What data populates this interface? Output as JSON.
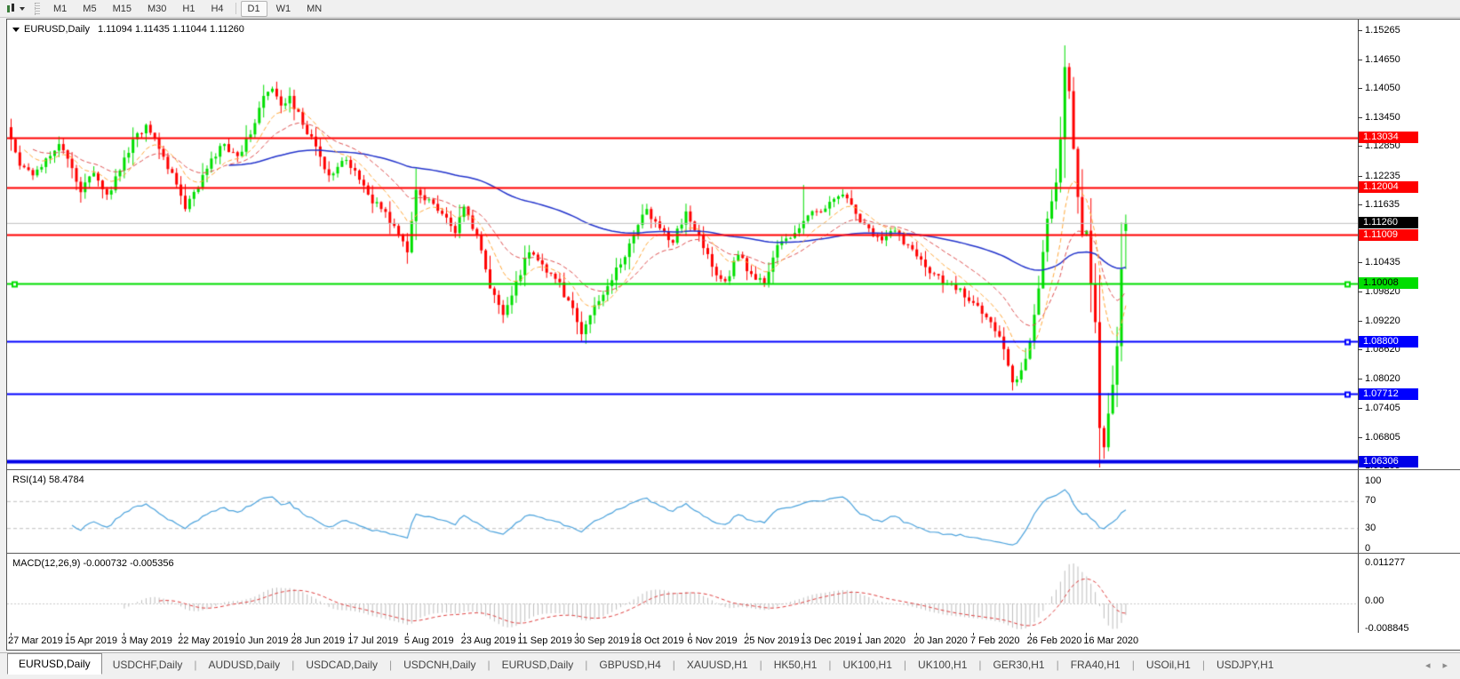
{
  "toolbar": {
    "timeframes": [
      "M1",
      "M5",
      "M15",
      "M30",
      "H1",
      "H4",
      "D1",
      "W1",
      "MN"
    ],
    "active_timeframe": "D1"
  },
  "icons": {
    "chart_dropdown": "candlestick-chart-with-caret",
    "tab_scroll_left": "◂",
    "tab_scroll_right": "▸"
  },
  "chart": {
    "title_symbol": "EURUSD,Daily",
    "title_ohlc": "1.11094 1.11435 1.11044 1.11260",
    "rsi_label": "RSI(14) 58.4784",
    "macd_label": "MACD(12,26,9) -0.000732 -0.005356"
  },
  "chart_data": {
    "type": "candlestick",
    "symbol": "EURUSD",
    "timeframe": "Daily",
    "current_ohlc": {
      "open": 1.11094,
      "high": 1.11435,
      "low": 1.11044,
      "close": 1.1126
    },
    "bars_count": 257,
    "ylim": [
      1.0618,
      1.1545
    ],
    "price_path_anchors": [
      [
        0,
        1.13
      ],
      [
        2,
        1.1245
      ],
      [
        5,
        1.1225
      ],
      [
        8,
        1.126
      ],
      [
        11,
        1.129
      ],
      [
        14,
        1.124
      ],
      [
        16,
        1.119
      ],
      [
        19,
        1.123
      ],
      [
        22,
        1.1185
      ],
      [
        25,
        1.1235
      ],
      [
        28,
        1.13
      ],
      [
        31,
        1.133
      ],
      [
        34,
        1.128
      ],
      [
        37,
        1.123
      ],
      [
        40,
        1.1155
      ],
      [
        43,
        1.12
      ],
      [
        46,
        1.126
      ],
      [
        49,
        1.129
      ],
      [
        52,
        1.1265
      ],
      [
        55,
        1.131
      ],
      [
        58,
        1.139
      ],
      [
        60,
        1.1405
      ],
      [
        62,
        1.137
      ],
      [
        64,
        1.139
      ],
      [
        67,
        1.133
      ],
      [
        70,
        1.1285
      ],
      [
        73,
        1.1225
      ],
      [
        76,
        1.1255
      ],
      [
        79,
        1.1235
      ],
      [
        82,
        1.1185
      ],
      [
        85,
        1.1155
      ],
      [
        88,
        1.112
      ],
      [
        91,
        1.1065
      ],
      [
        93,
        1.1195
      ],
      [
        96,
        1.1175
      ],
      [
        99,
        1.1145
      ],
      [
        102,
        1.1105
      ],
      [
        104,
        1.116
      ],
      [
        107,
        1.11
      ],
      [
        110,
        1.099
      ],
      [
        113,
        1.0935
      ],
      [
        116,
        1.1005
      ],
      [
        119,
        1.1065
      ],
      [
        122,
        1.104
      ],
      [
        125,
        1.101
      ],
      [
        128,
        1.0965
      ],
      [
        131,
        1.0895
      ],
      [
        134,
        1.0955
      ],
      [
        137,
        1.0995
      ],
      [
        140,
        1.104
      ],
      [
        143,
        1.11
      ],
      [
        146,
        1.1155
      ],
      [
        149,
        1.1115
      ],
      [
        152,
        1.1085
      ],
      [
        155,
        1.115
      ],
      [
        158,
        1.11
      ],
      [
        161,
        1.1035
      ],
      [
        164,
        1.1005
      ],
      [
        167,
        1.106
      ],
      [
        170,
        1.102
      ],
      [
        173,
        1.1
      ],
      [
        176,
        1.108
      ],
      [
        179,
        1.1095
      ],
      [
        182,
        1.113
      ],
      [
        185,
        1.115
      ],
      [
        188,
        1.117
      ],
      [
        191,
        1.1185
      ],
      [
        194,
        1.1145
      ],
      [
        197,
        1.1115
      ],
      [
        200,
        1.109
      ],
      [
        203,
        1.111
      ],
      [
        206,
        1.108
      ],
      [
        209,
        1.105
      ],
      [
        212,
        1.102
      ],
      [
        215,
        1.1
      ],
      [
        218,
        1.099
      ],
      [
        221,
        1.096
      ],
      [
        224,
        1.093
      ],
      [
        227,
        1.089
      ],
      [
        230,
        1.0795
      ],
      [
        232,
        1.082
      ],
      [
        234,
        1.088
      ],
      [
        236,
        1.099
      ],
      [
        238,
        1.1135
      ],
      [
        240,
        1.121
      ],
      [
        241,
        1.13
      ],
      [
        242,
        1.145
      ],
      [
        243,
        1.14
      ],
      [
        244,
        1.128
      ],
      [
        245,
        1.118
      ],
      [
        246,
        1.11
      ],
      [
        247,
        1.111
      ],
      [
        248,
        1.1
      ],
      [
        249,
        1.092
      ],
      [
        250,
        1.07
      ],
      [
        251,
        1.066
      ],
      [
        252,
        1.073
      ],
      [
        253,
        1.079
      ],
      [
        254,
        1.087
      ],
      [
        255,
        1.103
      ],
      [
        256,
        1.1126
      ]
    ],
    "wick_overrides": [
      {
        "bar": 131,
        "low": 1.0879
      },
      {
        "bar": 182,
        "high": 1.1205
      },
      {
        "bar": 230,
        "low": 1.0778
      },
      {
        "bar": 242,
        "high": 1.1495
      },
      {
        "bar": 251,
        "low": 1.0636
      },
      {
        "bar": 256,
        "high": 1.11435,
        "low": 1.11044
      }
    ],
    "colors": {
      "up": "#00DF00",
      "down": "#FF0000",
      "ma_fast": "#FFAA3C",
      "ma_medium": "#E05050",
      "ma_slow": "#2233CC",
      "rsi_line": "#4CA3DD",
      "macd_hist": "#BEBEBE",
      "macd_signal": "#E04040",
      "current_price_line": "#C0C0C0"
    },
    "moving_averages": [
      {
        "name": "fast",
        "period": 10,
        "method": "ema",
        "style": "dashed"
      },
      {
        "name": "medium",
        "period": 22,
        "method": "ema",
        "style": "dashed"
      },
      {
        "name": "slow",
        "period": 50,
        "method": "smma",
        "style": "solid"
      }
    ],
    "horizontal_levels": [
      {
        "label": "1.13034",
        "value": 1.13034,
        "color": "#FF0000",
        "chip_bg": "#FF0000",
        "chip_fg": "#FFFFFF",
        "width": 2,
        "handles": []
      },
      {
        "label": "1.12004",
        "value": 1.12004,
        "color": "#FF0000",
        "chip_bg": "#FF0000",
        "chip_fg": "#FFFFFF",
        "width": 2,
        "handles": []
      },
      {
        "label": "1.11009",
        "value": 1.11009,
        "color": "#FF0000",
        "chip_bg": "#FF0000",
        "chip_fg": "#FFFFFF",
        "width": 2,
        "handles": []
      },
      {
        "label": "1.10008",
        "value": 1.10008,
        "color": "#00DE00",
        "chip_bg": "#00DE00",
        "chip_fg": "#000000",
        "width": 2,
        "handles": [
          16,
          1516
        ]
      },
      {
        "label": "1.08800",
        "value": 1.088,
        "color": "#0000FF",
        "chip_bg": "#0000FF",
        "chip_fg": "#FFFFFF",
        "width": 2,
        "handles": [
          1516
        ]
      },
      {
        "label": "1.07712",
        "value": 1.07712,
        "color": "#0000FF",
        "chip_bg": "#0000FF",
        "chip_fg": "#FFFFFF",
        "width": 2,
        "handles": [
          1516
        ]
      },
      {
        "label": "1.06306",
        "value": 1.06306,
        "color": "#0000E8",
        "chip_bg": "#0000E8",
        "chip_fg": "#FFFFFF",
        "width": 4,
        "handles": []
      }
    ],
    "current_price": {
      "label": "1.11260",
      "value": 1.1126,
      "chip_bg": "#000000",
      "chip_fg": "#FFFFFF"
    },
    "price_ticks": [
      "1.15265",
      "1.14650",
      "1.14050",
      "1.13450",
      "1.12850",
      "1.12235",
      "1.11635",
      "1.10435",
      "1.09820",
      "1.09220",
      "1.08620",
      "1.08020",
      "1.07405",
      "1.06805",
      "1.06205"
    ],
    "date_ticks": [
      {
        "label": "27 Mar 2019",
        "bar": 0
      },
      {
        "label": "15 Apr 2019",
        "bar": 13
      },
      {
        "label": "3 May 2019",
        "bar": 26
      },
      {
        "label": "22 May 2019",
        "bar": 39
      },
      {
        "label": "10 Jun 2019",
        "bar": 52
      },
      {
        "label": "28 Jun 2019",
        "bar": 65
      },
      {
        "label": "17 Jul 2019",
        "bar": 78
      },
      {
        "label": "5 Aug 2019",
        "bar": 91
      },
      {
        "label": "23 Aug 2019",
        "bar": 104
      },
      {
        "label": "11 Sep 2019",
        "bar": 117
      },
      {
        "label": "30 Sep 2019",
        "bar": 130
      },
      {
        "label": "18 Oct 2019",
        "bar": 143
      },
      {
        "label": "6 Nov 2019",
        "bar": 156
      },
      {
        "label": "25 Nov 2019",
        "bar": 169
      },
      {
        "label": "13 Dec 2019",
        "bar": 182
      },
      {
        "label": "1 Jan 2020",
        "bar": 195
      },
      {
        "label": "20 Jan 2020",
        "bar": 208
      },
      {
        "label": "7 Feb 2020",
        "bar": 221
      },
      {
        "label": "26 Feb 2020",
        "bar": 234
      },
      {
        "label": "16 Mar 2020",
        "bar": 247
      }
    ],
    "rsi": {
      "period": 14,
      "value": "58.4784",
      "range": [
        0,
        100
      ],
      "levels": [
        70,
        30
      ],
      "axis_labels": [
        {
          "label": "100",
          "v": 100
        },
        {
          "label": "70",
          "v": 70
        },
        {
          "label": "30",
          "v": 30
        },
        {
          "label": "0",
          "v": 0
        }
      ]
    },
    "macd": {
      "params": "12,26,9",
      "main": "-0.000732",
      "signal": "-0.005356",
      "axis_labels": [
        {
          "label": "0.011277",
          "pos": "top"
        },
        {
          "label": "0.00",
          "pos": "zero"
        },
        {
          "label": "-0.008845",
          "pos": "bottom"
        }
      ]
    }
  },
  "tabs": {
    "items": [
      {
        "label": "EURUSD,Daily",
        "active": true
      },
      {
        "label": "USDCHF,Daily",
        "active": false
      },
      {
        "label": "AUDUSD,Daily",
        "active": false
      },
      {
        "label": "USDCAD,Daily",
        "active": false
      },
      {
        "label": "USDCNH,Daily",
        "active": false
      },
      {
        "label": "EURUSD,Daily",
        "active": false
      },
      {
        "label": "GBPUSD,H4",
        "active": false
      },
      {
        "label": "XAUUSD,H1",
        "active": false
      },
      {
        "label": "HK50,H1",
        "active": false
      },
      {
        "label": "UK100,H1",
        "active": false
      },
      {
        "label": "UK100,H1",
        "active": false
      },
      {
        "label": "GER30,H1",
        "active": false
      },
      {
        "label": "FRA40,H1",
        "active": false
      },
      {
        "label": "USOil,H1",
        "active": false
      },
      {
        "label": "USDJPY,H1",
        "active": false
      }
    ]
  }
}
